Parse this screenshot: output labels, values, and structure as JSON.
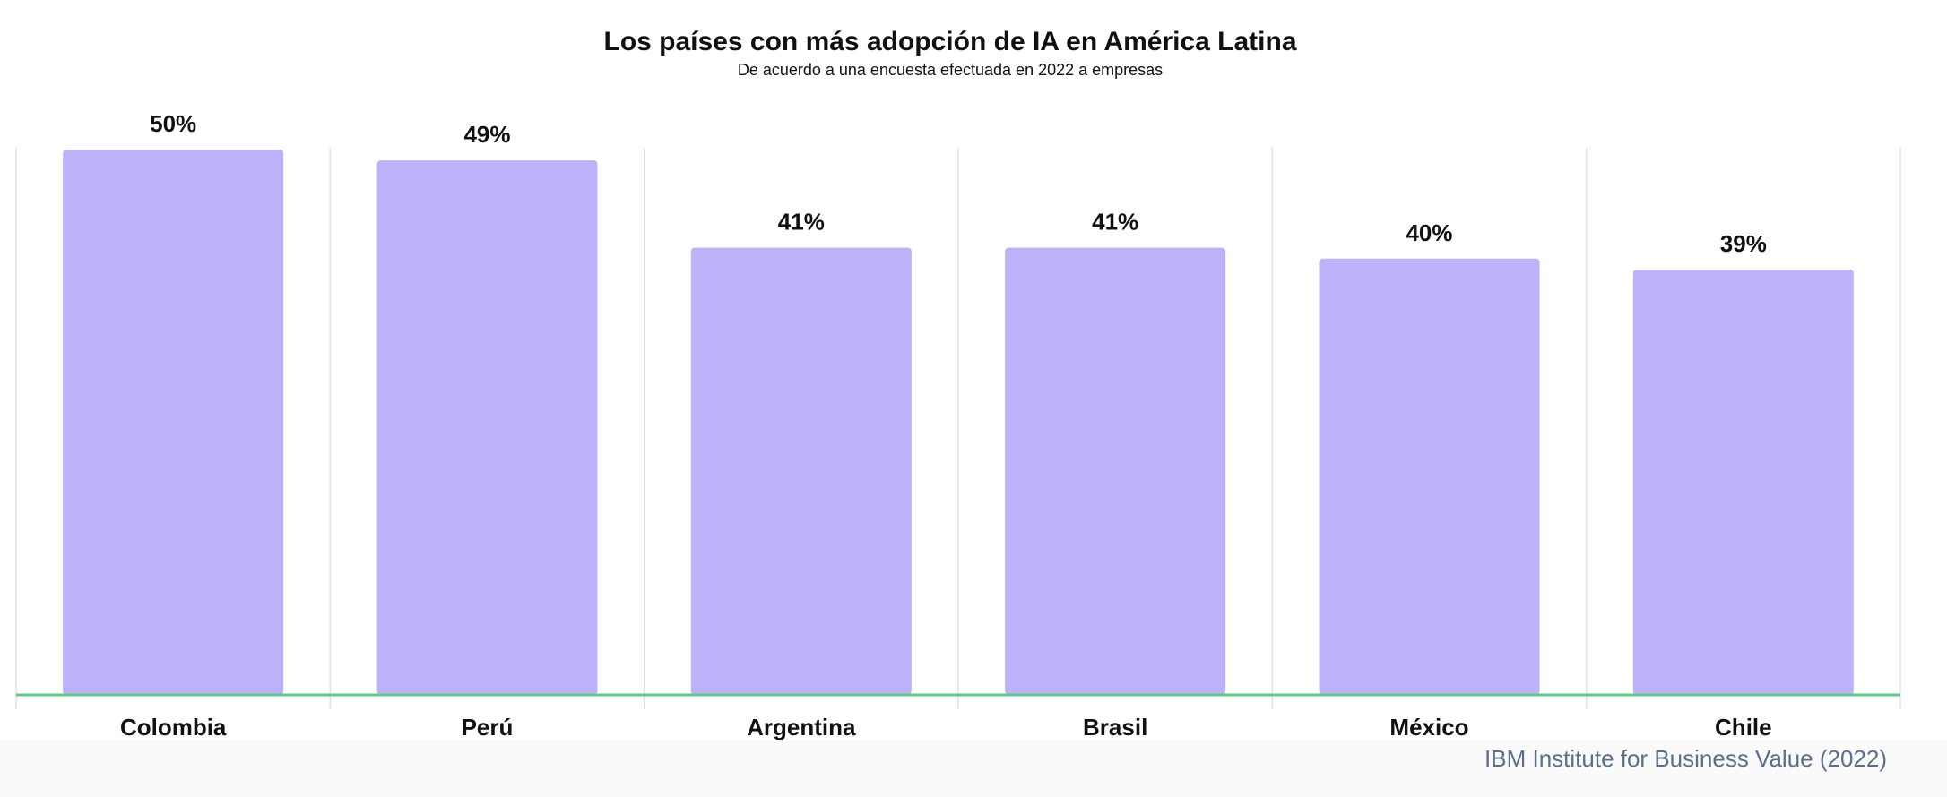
{
  "chart_data": {
    "type": "bar",
    "title": "Los países con más adopción de IA en América Latina",
    "subtitle": "De acuerdo a una encuesta efectuada en 2022 a empresas",
    "categories": [
      "Colombia",
      "Perú",
      "Argentina",
      "Brasil",
      "México",
      "Chile"
    ],
    "values": [
      50,
      49,
      41,
      41,
      40,
      39
    ],
    "value_labels": [
      "50%",
      "49%",
      "41%",
      "41%",
      "40%",
      "39%"
    ],
    "unit": "%",
    "ylim": [
      0,
      50
    ],
    "grid": "vertical separators",
    "legend": "none",
    "colors": {
      "bar": "#bcb2fa",
      "baseline": "#5ec98a",
      "grid": "#e2e2e2",
      "text": "#111111",
      "source": "#5b6f8c"
    },
    "source": "IBM Institute for Business Value (2022)"
  }
}
